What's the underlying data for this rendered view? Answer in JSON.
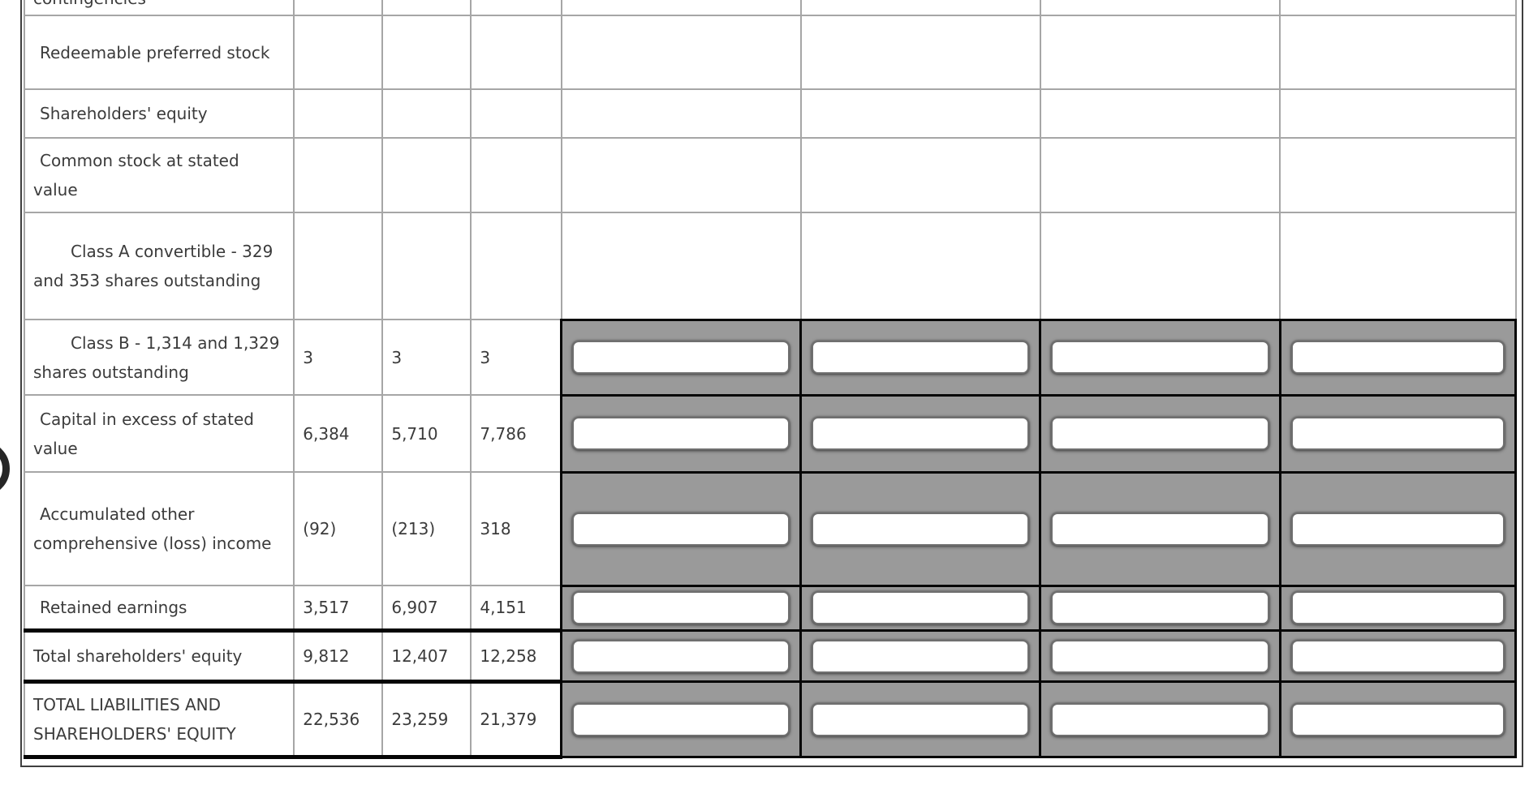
{
  "colors": {
    "page_bg": "#ffffff",
    "text": "#3b3b3b",
    "grid_border_light": "#a6a6a6",
    "grid_border_dark": "#3f3f3f",
    "answer_area_bg": "#9a9a9a",
    "answer_area_border": "#060606",
    "input_bg": "#ffffff",
    "input_border": "#6f6f6f"
  },
  "annotation": {
    "icon": "cut-off-circle"
  },
  "table": {
    "value_column_count": 3,
    "answer_column_count": 4,
    "rows": [
      {
        "label": "contingencies",
        "indent": "none",
        "partial": true,
        "values": [
          "",
          "",
          ""
        ],
        "inputs": false,
        "thick_bottom": false
      },
      {
        "label": "Redeemable preferred stock",
        "indent": "normal",
        "partial": false,
        "values": [
          "",
          "",
          ""
        ],
        "inputs": false,
        "thick_bottom": false
      },
      {
        "label": "Shareholders' equity",
        "indent": "normal",
        "partial": false,
        "values": [
          "",
          "",
          ""
        ],
        "inputs": false,
        "thick_bottom": false
      },
      {
        "label": "Common stock at stated value",
        "indent": "normal",
        "partial": false,
        "values": [
          "",
          "",
          ""
        ],
        "inputs": false,
        "thick_bottom": false
      },
      {
        "label": "Class A convertible - 329 and 353 shares outstanding",
        "indent": "deep",
        "partial": false,
        "values": [
          "",
          "",
          ""
        ],
        "inputs": false,
        "thick_bottom": false
      },
      {
        "label": "Class B - 1,314 and 1,329 shares outstanding",
        "indent": "deep",
        "partial": false,
        "values": [
          "3",
          "3",
          "3"
        ],
        "inputs": true,
        "thick_bottom": false
      },
      {
        "label": "Capital in excess of stated value",
        "indent": "normal",
        "partial": false,
        "values": [
          "6,384",
          "5,710",
          "7,786"
        ],
        "inputs": true,
        "thick_bottom": false
      },
      {
        "label": "Accumulated other comprehensive (loss) income",
        "indent": "normal",
        "partial": false,
        "values": [
          "(92)",
          "(213)",
          "318"
        ],
        "inputs": true,
        "thick_bottom": false
      },
      {
        "label": "Retained earnings",
        "indent": "normal",
        "partial": false,
        "values": [
          "3,517",
          "6,907",
          "4,151"
        ],
        "inputs": true,
        "thick_bottom": true
      },
      {
        "label": "Total shareholders' equity",
        "indent": "none",
        "partial": false,
        "values": [
          "9,812",
          "12,407",
          "12,258"
        ],
        "inputs": true,
        "thick_bottom": true
      },
      {
        "label": "TOTAL LIABILITIES AND SHAREHOLDERS' EQUITY",
        "indent": "none",
        "partial": false,
        "values": [
          "22,536",
          "23,259",
          "21,379"
        ],
        "inputs": true,
        "thick_bottom": true
      }
    ]
  }
}
